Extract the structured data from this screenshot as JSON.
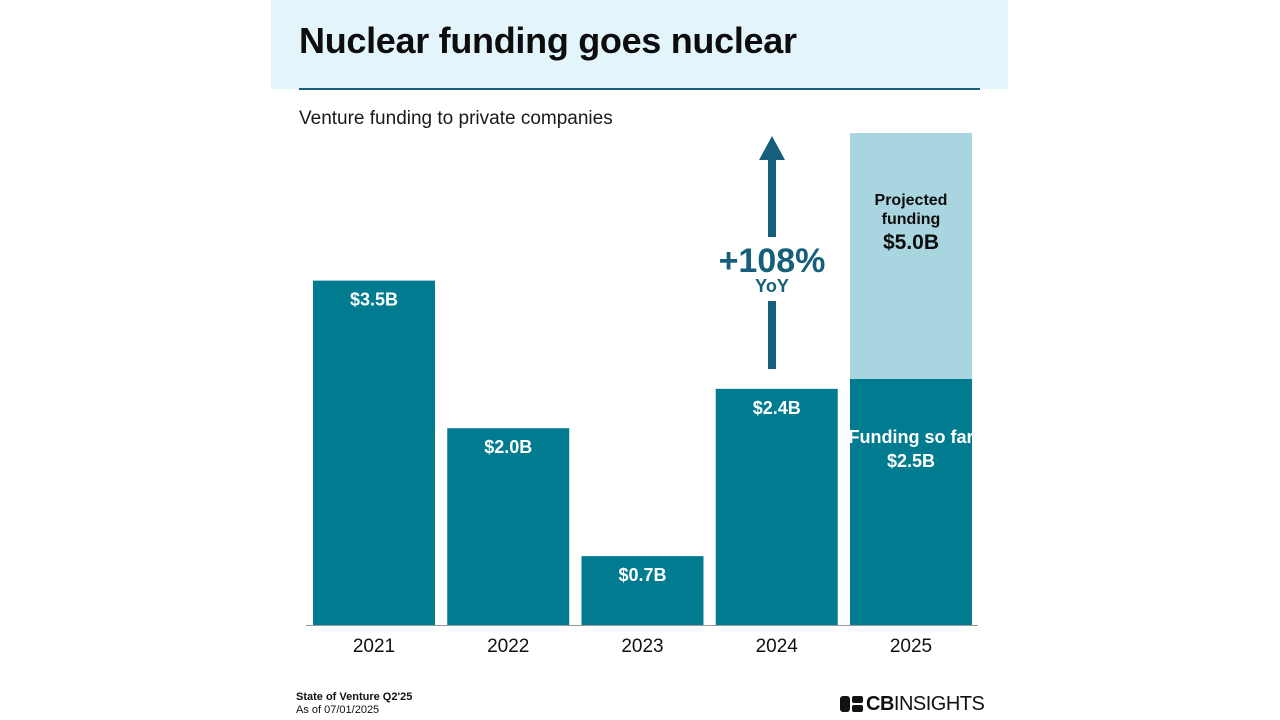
{
  "title": "Nuclear funding goes nuclear",
  "subtitle": "Venture funding to private companies",
  "footer": {
    "source": "State of Venture Q2'25",
    "as_of": "As of 07/01/2025"
  },
  "logo": {
    "part1": "CB",
    "part2": "INSIGHTS"
  },
  "annotation": {
    "pct": "+108%",
    "label": "YoY"
  },
  "colors": {
    "bar": "#007b8f",
    "projected": "#a8d5e0",
    "accent": "#155f7a",
    "title_band": "#e3f5fa"
  },
  "chart_data": {
    "type": "bar",
    "title": "Nuclear funding goes nuclear",
    "subtitle": "Venture funding to private companies",
    "categories": [
      "2021",
      "2022",
      "2023",
      "2024",
      "2025"
    ],
    "unit": "$B",
    "series": [
      {
        "name": "Funding so far",
        "values": [
          3.5,
          2.0,
          0.7,
          2.4,
          2.5
        ],
        "labels": [
          "$3.5B",
          "$2.0B",
          "$0.7B",
          "$2.4B",
          "$2.5B"
        ]
      },
      {
        "name": "Projected funding",
        "values": [
          null,
          null,
          null,
          null,
          2.5
        ],
        "total_label": "$5.0B"
      }
    ],
    "projected_total": 5.0,
    "ylim": [
      0,
      5.0
    ],
    "grid": false,
    "legend": "none",
    "inline_labels": {
      "projected_line1": "Projected",
      "projected_line2": "funding",
      "projected_value": "$5.0B",
      "so_far_line": "Funding so far",
      "so_far_value": "$2.5B"
    }
  }
}
